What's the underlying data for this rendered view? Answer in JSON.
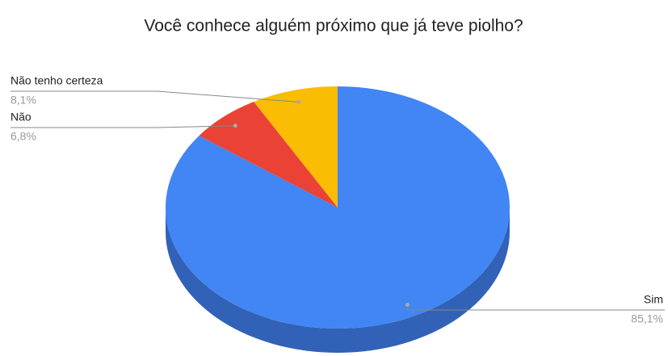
{
  "chart_data": {
    "type": "pie",
    "title": "Você conhece alguém próximo que já teve piolho?",
    "categories": [
      "Sim",
      "Não",
      "Não tenho certeza"
    ],
    "values": [
      85.1,
      6.8,
      8.1
    ],
    "value_labels": [
      "85,1%",
      "6,8%",
      "8,1%"
    ],
    "colors": [
      "#4285f4",
      "#ea4335",
      "#fbbc04"
    ],
    "side_color": "#3162b8"
  }
}
